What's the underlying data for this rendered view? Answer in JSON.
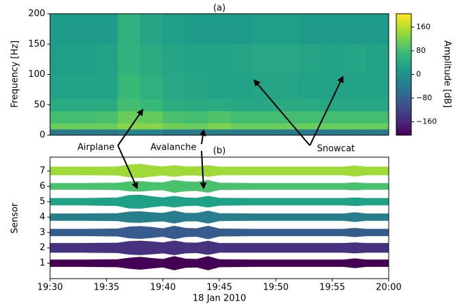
{
  "chart_data": [
    {
      "type": "heatmap",
      "title": "(a)",
      "y_label": "Frequency [Hz]",
      "colorbar_label": "Amplitude [dB]",
      "colormap": "viridis",
      "xlim": [
        "19:30",
        "20:00"
      ],
      "ylim": [
        0,
        200
      ],
      "yticks": [
        0,
        50,
        100,
        150,
        200
      ],
      "x_edges": [
        "19:30",
        "19:32",
        "19:34",
        "19:36",
        "19:38",
        "19:40",
        "19:42",
        "19:44",
        "19:46",
        "19:48",
        "19:50",
        "19:52",
        "19:54",
        "19:56",
        "19:58",
        "20:00"
      ],
      "y_edges": [
        0,
        10,
        20,
        40,
        60,
        100,
        150,
        200
      ],
      "z": [
        [
          -40,
          -40,
          -40,
          -20,
          -20,
          -40,
          -40,
          -30,
          -40,
          -40,
          -40,
          -40,
          -40,
          -40,
          -40
        ],
        [
          110,
          110,
          110,
          130,
          130,
          115,
          110,
          125,
          110,
          110,
          110,
          110,
          110,
          110,
          110
        ],
        [
          80,
          80,
          85,
          110,
          105,
          85,
          80,
          90,
          80,
          80,
          80,
          80,
          80,
          80,
          80
        ],
        [
          45,
          45,
          45,
          80,
          70,
          50,
          45,
          45,
          40,
          40,
          45,
          45,
          40,
          40,
          40
        ],
        [
          30,
          30,
          30,
          70,
          55,
          40,
          35,
          30,
          30,
          35,
          35,
          30,
          30,
          30,
          30
        ],
        [
          25,
          25,
          30,
          60,
          45,
          35,
          30,
          30,
          35,
          40,
          40,
          35,
          30,
          35,
          30
        ],
        [
          20,
          20,
          20,
          55,
          35,
          25,
          20,
          20,
          20,
          25,
          25,
          20,
          20,
          20,
          20
        ]
      ],
      "clim": [
        -205,
        205
      ],
      "cticks": [
        {
          "value": -160,
          "label": "−160"
        },
        {
          "value": -80,
          "label": "−80"
        },
        0,
        80,
        160
      ]
    },
    {
      "type": "waveform",
      "title": "(b)",
      "y_label": "Sensor",
      "x_label": "18 Jan 2010",
      "xlim": [
        "19:30",
        "20:00"
      ],
      "xticks": [
        "19:30",
        "19:35",
        "19:40",
        "19:45",
        "19:50",
        "19:55",
        "20:00"
      ],
      "ylim": [
        0,
        7.9
      ],
      "yticks": [
        1,
        2,
        3,
        4,
        5,
        6,
        7
      ],
      "x": [
        "19:30",
        "19:33",
        "19:36",
        "19:37",
        "19:38",
        "19:39",
        "19:40",
        "19:41",
        "19:42",
        "19:43",
        "19:44",
        "19:45",
        "19:48",
        "19:52",
        "19:56",
        "19:57",
        "19:58",
        "20:00"
      ],
      "series": [
        {
          "color": "#440154",
          "values": [
            0.22,
            0.22,
            0.24,
            0.34,
            0.4,
            0.32,
            0.26,
            0.44,
            0.28,
            0.26,
            0.44,
            0.24,
            0.22,
            0.22,
            0.22,
            0.3,
            0.22,
            0.22
          ]
        },
        {
          "color": "#46327e",
          "values": [
            0.3,
            0.3,
            0.32,
            0.42,
            0.45,
            0.4,
            0.34,
            0.46,
            0.34,
            0.32,
            0.44,
            0.3,
            0.3,
            0.3,
            0.3,
            0.34,
            0.3,
            0.3
          ]
        },
        {
          "color": "#365c8d",
          "values": [
            0.22,
            0.22,
            0.24,
            0.36,
            0.4,
            0.34,
            0.26,
            0.42,
            0.28,
            0.26,
            0.42,
            0.24,
            0.22,
            0.22,
            0.22,
            0.28,
            0.22,
            0.22
          ]
        },
        {
          "color": "#277f8e",
          "values": [
            0.22,
            0.22,
            0.24,
            0.34,
            0.36,
            0.3,
            0.26,
            0.4,
            0.26,
            0.26,
            0.4,
            0.24,
            0.22,
            0.22,
            0.22,
            0.3,
            0.22,
            0.22
          ]
        },
        {
          "color": "#1fa187",
          "values": [
            0.22,
            0.22,
            0.26,
            0.42,
            0.44,
            0.34,
            0.26,
            0.36,
            0.26,
            0.24,
            0.36,
            0.24,
            0.22,
            0.22,
            0.22,
            0.26,
            0.22,
            0.22
          ]
        },
        {
          "color": "#4ac16d",
          "values": [
            0.2,
            0.2,
            0.22,
            0.3,
            0.32,
            0.26,
            0.24,
            0.4,
            0.3,
            0.28,
            0.4,
            0.22,
            0.2,
            0.2,
            0.2,
            0.24,
            0.2,
            0.2
          ]
        },
        {
          "color": "#a0da39",
          "values": [
            0.26,
            0.26,
            0.28,
            0.4,
            0.44,
            0.34,
            0.28,
            0.36,
            0.28,
            0.28,
            0.36,
            0.26,
            0.26,
            0.26,
            0.26,
            0.34,
            0.26,
            0.26
          ]
        }
      ]
    }
  ],
  "annotations": [
    "Airplane",
    "Avalanche",
    "Snowcat"
  ]
}
